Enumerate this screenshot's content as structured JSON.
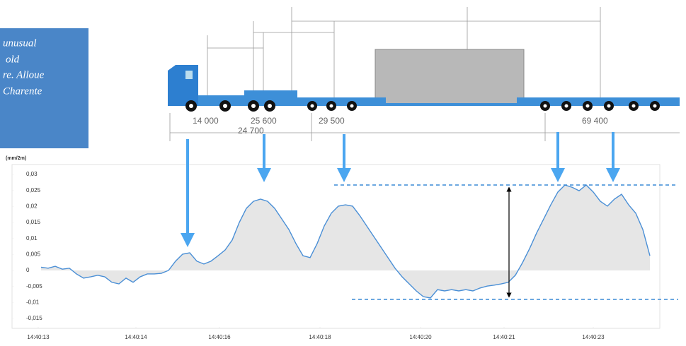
{
  "chart_data": {
    "type": "line",
    "y_label": "(mm/2m)",
    "note": [
      "unusual",
      "old",
      "re. Alloue",
      "Charente"
    ],
    "annotations": [
      "14 000",
      "25 600",
      "24 700",
      "29 500",
      "69 400"
    ],
    "x": [
      0,
      1,
      2,
      3,
      4,
      5,
      6,
      7,
      8,
      9,
      10,
      11,
      12,
      13,
      14,
      15,
      16,
      17,
      18,
      19,
      20,
      21,
      22,
      23,
      24,
      25,
      26,
      27,
      28,
      29,
      30,
      31,
      32,
      33,
      34,
      35,
      36,
      37,
      38,
      39,
      40,
      41,
      42,
      43,
      44,
      45,
      46,
      47,
      48,
      49,
      50,
      51,
      52,
      53,
      54,
      55,
      56,
      57,
      58,
      59,
      60,
      61,
      62,
      63,
      64,
      65,
      66,
      67,
      68,
      69,
      70,
      71,
      72,
      73,
      74,
      75,
      76,
      77,
      78,
      79,
      80,
      81,
      82,
      83,
      84,
      85,
      86
    ],
    "series": [
      {
        "color": "#4a8fd6",
        "values": [
          0.001,
          0.0007,
          0.0013,
          0.0004,
          0.0007,
          -0.0011,
          -0.0024,
          -0.002,
          -0.0015,
          -0.002,
          -0.0037,
          -0.0042,
          -0.0024,
          -0.0037,
          -0.002,
          -0.0011,
          -0.0011,
          -0.0009,
          0,
          0.0029,
          0.0051,
          0.0055,
          0.0029,
          0.002,
          0.0029,
          0.0046,
          0.0064,
          0.0095,
          0.015,
          0.0194,
          0.0216,
          0.0223,
          0.0216,
          0.0194,
          0.0161,
          0.0128,
          0.0084,
          0.0046,
          0.004,
          0.0084,
          0.0139,
          0.0179,
          0.0201,
          0.0205,
          0.0201,
          0.0172,
          0.0139,
          0.0106,
          0.0073,
          0.004,
          0.0007,
          -0.002,
          -0.0042,
          -0.0064,
          -0.0082,
          -0.0086,
          -0.006,
          -0.0064,
          -0.006,
          -0.0064,
          -0.006,
          -0.0064,
          -0.0055,
          -0.0049,
          -0.0046,
          -0.0042,
          -0.0037,
          -0.0015,
          0.0024,
          0.0068,
          0.0117,
          0.0161,
          0.0205,
          0.0245,
          0.0267,
          0.026,
          0.0249,
          0.0267,
          0.0245,
          0.0216,
          0.0201,
          0.0223,
          0.0238,
          0.0205,
          0.0179,
          0.0128,
          0.0046
        ]
      }
    ],
    "xlim": [
      -4.1,
      87.4
    ],
    "xticks": [
      {
        "value": -0.4,
        "label": "14:40:13"
      },
      {
        "value": 13.4,
        "label": "14:40:14"
      },
      {
        "value": 25.2,
        "label": "14:40:16"
      },
      {
        "value": 39.4,
        "label": "14:40:18"
      },
      {
        "value": 53.6,
        "label": "14:40:20"
      },
      {
        "value": 65.4,
        "label": "14:40:21"
      },
      {
        "value": 78,
        "label": "14:40:23"
      }
    ],
    "ylim": [
      -0.0181,
      0.0331
    ],
    "yticks": [
      {
        "value": 0.03,
        "label": "0,03"
      },
      {
        "value": 0.025,
        "label": "0,025"
      },
      {
        "value": 0.02,
        "label": "0,02"
      },
      {
        "value": 0.015,
        "label": "0,015"
      },
      {
        "value": 0.01,
        "label": "0,01"
      },
      {
        "value": 0.005,
        "label": "0,005"
      },
      0,
      {
        "value": -0.005,
        "label": "-0,005"
      },
      {
        "value": -0.01,
        "label": "-0,01"
      },
      {
        "value": -0.015,
        "label": "-0,015"
      }
    ],
    "area_color": "#d6d6d6"
  }
}
